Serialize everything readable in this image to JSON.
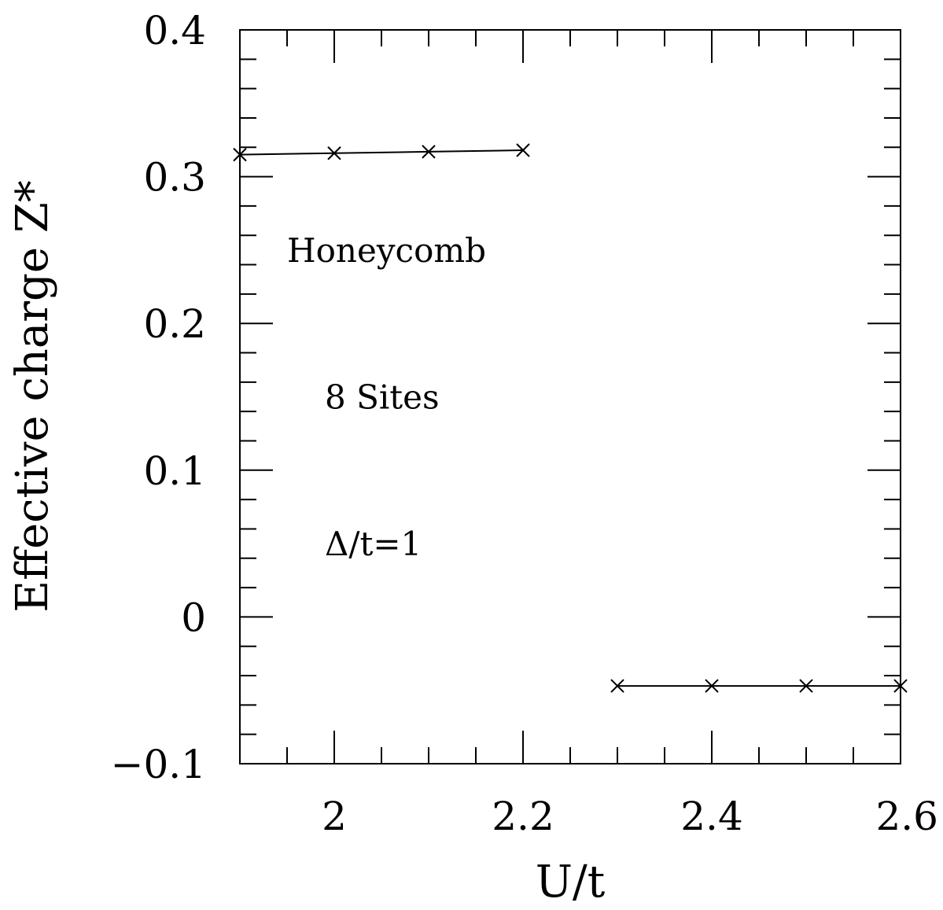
{
  "chart_data": {
    "type": "line",
    "xlabel": "U/t",
    "ylabel": "Effective charge Z*",
    "xlim": [
      1.9,
      2.6
    ],
    "ylim": [
      -0.1,
      0.4
    ],
    "x_ticks": [
      {
        "value": 2.0,
        "label": "2"
      },
      {
        "value": 2.2,
        "label": "2.2"
      },
      {
        "value": 2.4,
        "label": "2.4"
      },
      {
        "value": 2.6,
        "label": "2.6"
      }
    ],
    "y_ticks": [
      {
        "value": -0.1,
        "label": "−0.1"
      },
      {
        "value": 0.0,
        "label": "0"
      },
      {
        "value": 0.1,
        "label": "0.1"
      },
      {
        "value": 0.2,
        "label": "0.2"
      },
      {
        "value": 0.3,
        "label": "0.3"
      },
      {
        "value": 0.4,
        "label": "0.4"
      }
    ],
    "series": [
      {
        "x": [
          1.9,
          2.0,
          2.1,
          2.2
        ],
        "y": [
          0.315,
          0.316,
          0.317,
          0.318
        ]
      },
      {
        "x": [
          2.3,
          2.4,
          2.5,
          2.6
        ],
        "y": [
          -0.047,
          -0.047,
          -0.047,
          -0.047
        ]
      }
    ],
    "annotations": [
      {
        "text": "Honeycomb",
        "x": 1.95,
        "y": 0.25
      },
      {
        "text": "8 Sites",
        "x": 1.99,
        "y": 0.15
      },
      {
        "text": "Δ/t=1",
        "x": 1.99,
        "y": 0.05
      }
    ],
    "grid": false,
    "legend": "none",
    "marker": "x",
    "color": "#000000"
  }
}
